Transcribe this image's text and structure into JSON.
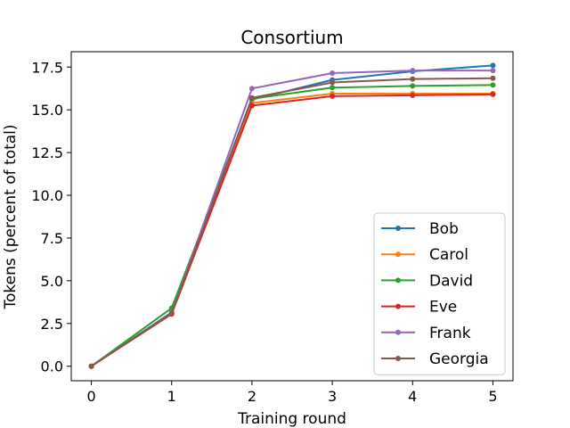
{
  "chart_data": {
    "type": "line",
    "title": "Consortium",
    "xlabel": "Training round",
    "ylabel": "Tokens (percent of total)",
    "x": [
      0,
      1,
      2,
      3,
      4,
      5
    ],
    "xticks": [
      "0",
      "1",
      "2",
      "3",
      "4",
      "5"
    ],
    "yticks": [
      "0.0",
      "2.5",
      "5.0",
      "7.5",
      "10.0",
      "12.5",
      "15.0",
      "17.5"
    ],
    "xlim": [
      -0.25,
      5.25
    ],
    "ylim": [
      -0.85,
      18.4
    ],
    "grid": false,
    "legend_position": "lower-right",
    "series": [
      {
        "name": "Bob",
        "color": "#1f77b4",
        "values": [
          0,
          3.15,
          15.6,
          16.75,
          17.25,
          17.6
        ]
      },
      {
        "name": "Carol",
        "color": "#ff7f0e",
        "values": [
          0,
          3.1,
          15.4,
          15.95,
          15.95,
          15.95
        ]
      },
      {
        "name": "David",
        "color": "#2ca02c",
        "values": [
          0,
          3.4,
          15.65,
          16.3,
          16.4,
          16.45
        ]
      },
      {
        "name": "Eve",
        "color": "#d62728",
        "values": [
          0,
          3.05,
          15.25,
          15.8,
          15.85,
          15.9
        ]
      },
      {
        "name": "Frank",
        "color": "#9467bd",
        "values": [
          0,
          3.1,
          16.25,
          17.15,
          17.3,
          17.3
        ]
      },
      {
        "name": "Georgia",
        "color": "#8c564b",
        "values": [
          0,
          3.1,
          15.7,
          16.6,
          16.8,
          16.85
        ]
      }
    ]
  }
}
